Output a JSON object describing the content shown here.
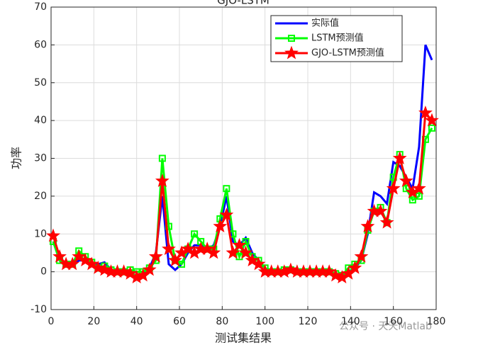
{
  "chart_data": {
    "type": "line",
    "title": "GJO-LSTM",
    "x_label": "测试集结果",
    "y_label": "功率",
    "x": [
      1,
      4,
      7,
      10,
      13,
      16,
      19,
      22,
      25,
      28,
      31,
      34,
      37,
      40,
      43,
      46,
      49,
      52,
      55,
      58,
      61,
      64,
      67,
      70,
      73,
      76,
      79,
      82,
      85,
      88,
      91,
      94,
      97,
      100,
      103,
      106,
      109,
      112,
      115,
      118,
      121,
      124,
      127,
      130,
      133,
      136,
      139,
      142,
      145,
      148,
      151,
      154,
      157,
      160,
      163,
      166,
      169,
      172,
      175,
      178
    ],
    "series": [
      {
        "name": "实际值",
        "color": "#0000ff",
        "marker": "none",
        "values": [
          8,
          3,
          1.5,
          1.5,
          3,
          3,
          2,
          2,
          2.5,
          0.5,
          0,
          0,
          -0.5,
          -1,
          -0.5,
          1,
          5,
          20,
          2,
          0.5,
          2,
          5,
          7,
          7,
          6,
          7,
          12,
          20,
          8,
          7,
          9,
          5,
          3,
          1,
          0,
          0,
          0,
          0.5,
          0,
          0,
          0,
          0,
          0,
          0,
          -1,
          -1,
          0,
          1,
          3,
          10,
          21,
          20,
          18,
          29,
          28,
          25,
          22,
          33,
          60,
          56
        ]
      },
      {
        "name": "LSTM预测值",
        "color": "#00ff00",
        "marker": "square",
        "values": [
          8,
          3,
          2,
          2,
          5.5,
          4,
          2.5,
          1,
          1.5,
          0.5,
          0,
          0,
          0.5,
          0,
          0,
          1,
          3,
          30,
          12,
          3,
          2,
          6,
          10,
          8,
          6,
          6,
          14,
          22,
          10,
          4,
          8,
          4,
          3,
          1,
          0,
          0,
          0.5,
          0.5,
          0,
          0,
          0,
          0,
          0,
          0,
          -0.5,
          -1,
          1,
          2,
          3,
          11,
          16,
          17,
          13,
          25,
          31,
          22,
          19,
          20,
          35,
          38
        ]
      },
      {
        "name": "GJO-LSTM预测值",
        "color": "#ff0000",
        "marker": "star",
        "values": [
          9.5,
          4,
          2,
          2,
          4,
          3,
          2,
          1,
          0.5,
          0,
          0,
          0,
          -0.5,
          -1.5,
          -1,
          0.5,
          4,
          24,
          6,
          3,
          5,
          6,
          5,
          6,
          6,
          5,
          12,
          15,
          5,
          7,
          5,
          3,
          2,
          0,
          0,
          0,
          0,
          0.5,
          0,
          0,
          0,
          0,
          0,
          0,
          -1,
          -1.5,
          -0.5,
          1,
          4,
          12,
          16,
          16,
          13,
          22,
          30,
          24,
          21,
          22,
          42,
          40
        ]
      }
    ],
    "xlim": [
      0,
      180
    ],
    "xticks": [
      0,
      20,
      40,
      60,
      80,
      100,
      120,
      140,
      160,
      180
    ],
    "ylim": [
      -10,
      70
    ],
    "yticks": [
      -10,
      0,
      10,
      20,
      30,
      40,
      50,
      60,
      70
    ],
    "grid": true,
    "legend_location": "northeast",
    "watermark": "公众号 · 天天Matlab"
  }
}
